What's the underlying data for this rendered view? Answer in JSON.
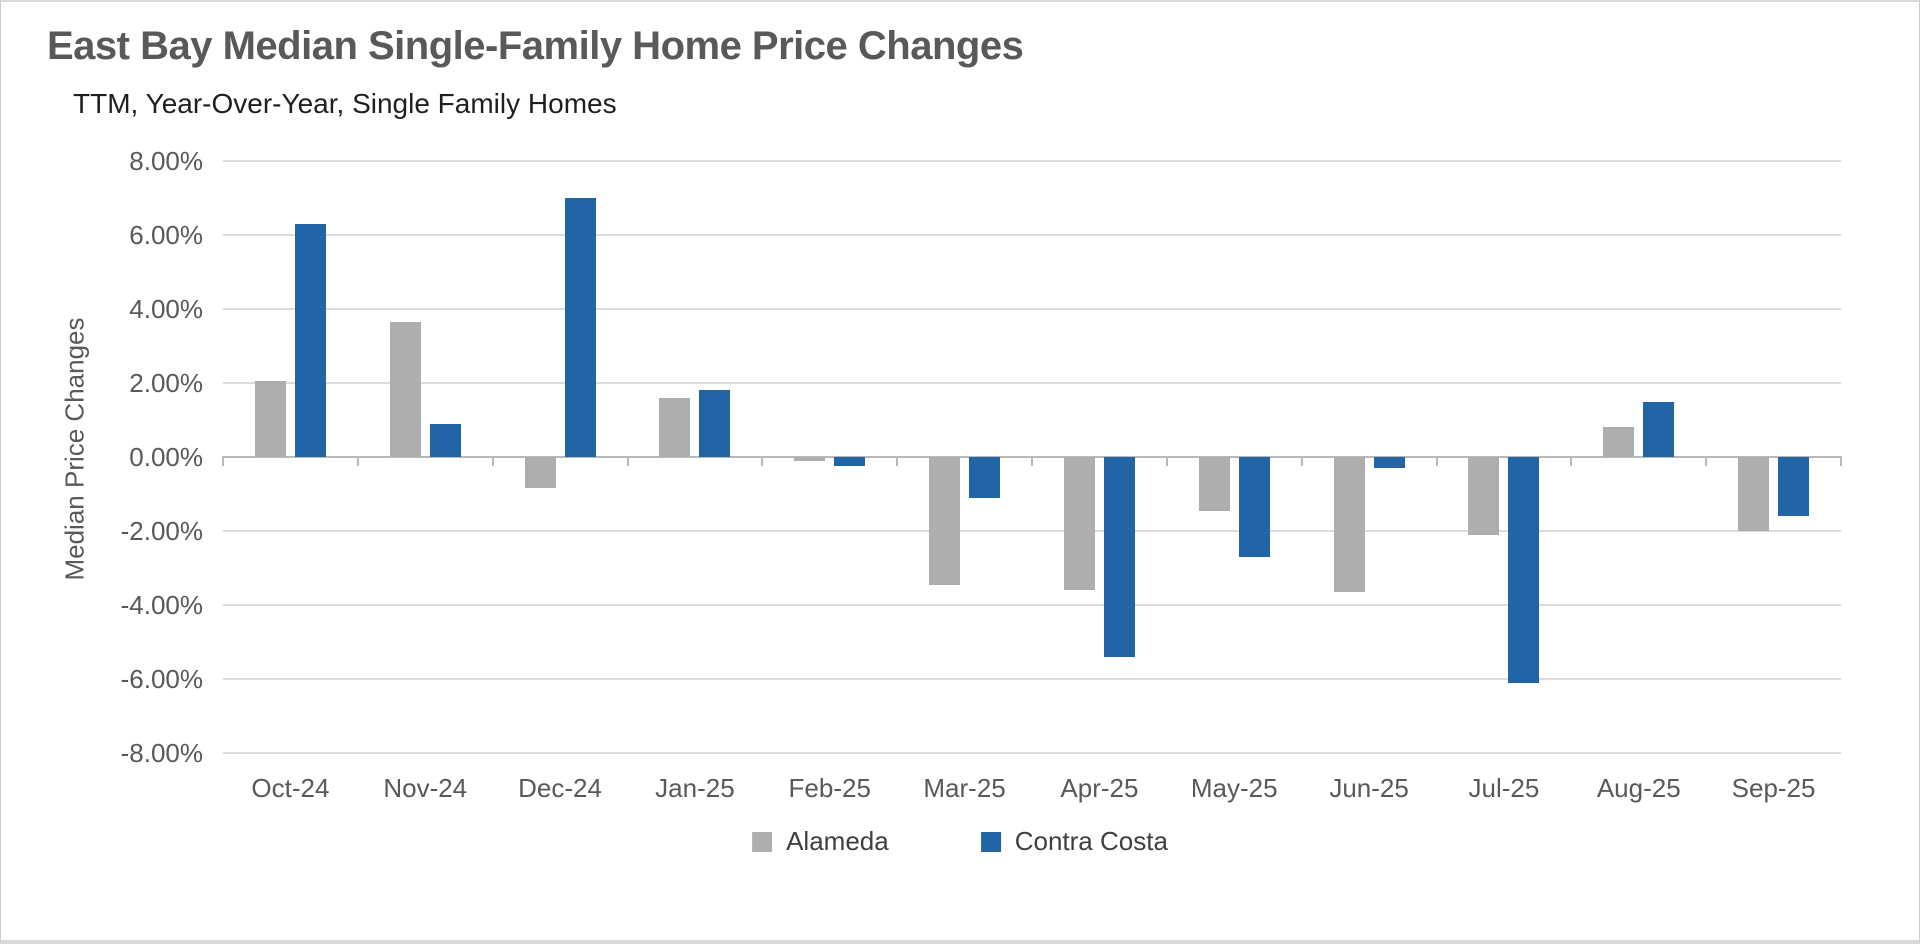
{
  "chart": {
    "title": "East Bay Median Single-Family Home Price Changes",
    "subtitle": "TTM, Year-Over-Year, Single Family Homes",
    "y_axis_title": "Median Price Changes"
  },
  "colors": {
    "alameda_bar": "#AEAEAE",
    "contra_costa_bar": "#2265A6",
    "gridline": "#DCDCDC",
    "axis_line": "#B9B9B9",
    "title_text": "#595959",
    "subtitle_text": "#1F1F1F",
    "tick_label_text": "#595959",
    "legend_text": "#3F3F3F"
  },
  "chart_data": {
    "type": "bar",
    "title": "East Bay Median Single-Family Home Price Changes",
    "subtitle": "TTM, Year-Over-Year, Single Family Homes",
    "xlabel": "",
    "ylabel": "Median Price Changes",
    "unit": "percent",
    "categories": [
      "Oct-24",
      "Nov-24",
      "Dec-24",
      "Jan-25",
      "Feb-25",
      "Mar-25",
      "Apr-25",
      "May-25",
      "Jun-25",
      "Jul-25",
      "Aug-25",
      "Sep-25"
    ],
    "series": [
      {
        "name": "Alameda",
        "color": "#AEAEAE",
        "values": [
          2.05,
          3.65,
          -0.85,
          1.6,
          -0.1,
          -3.45,
          -3.6,
          -1.45,
          -3.65,
          -2.1,
          0.8,
          -2.0
        ]
      },
      {
        "name": "Contra Costa",
        "color": "#2265A6",
        "values": [
          6.3,
          0.9,
          7.0,
          1.8,
          -0.25,
          -1.1,
          -5.4,
          -2.7,
          -0.3,
          -6.1,
          1.5,
          -1.6
        ]
      }
    ],
    "ylim": [
      -8,
      8
    ],
    "ytick_step": 2,
    "ytick_labels": [
      "8.00%",
      "6.00%",
      "4.00%",
      "2.00%",
      "0.00%",
      "-2.00%",
      "-4.00%",
      "-6.00%",
      "-8.00%"
    ],
    "grid": "horizontal",
    "legend_position": "bottom"
  }
}
